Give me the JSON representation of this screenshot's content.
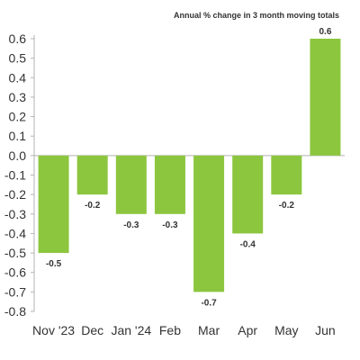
{
  "chart_data": {
    "type": "bar",
    "title": "",
    "subtitle": "Annual % change in 3 month moving totals",
    "xlabel": "",
    "ylabel": "",
    "categories": [
      "Nov '23",
      "Dec",
      "Jan '24",
      "Feb",
      "Mar",
      "Apr",
      "May",
      "Jun"
    ],
    "values": [
      -0.5,
      -0.2,
      -0.3,
      -0.3,
      -0.7,
      -0.4,
      -0.2,
      0.6
    ],
    "data_labels": [
      "-0.5",
      "-0.2",
      "-0.3",
      "-0.3",
      "-0.7",
      "-0.4",
      "-0.2",
      "0.6"
    ],
    "yticks": [
      0.6,
      0.5,
      0.4,
      0.3,
      0.2,
      0.1,
      0.0,
      -0.1,
      -0.2,
      -0.3,
      -0.4,
      -0.5,
      -0.6,
      -0.7,
      -0.8
    ],
    "ytick_labels": [
      "0.6",
      "0.5",
      "0.4",
      "0.3",
      "0.2",
      "0.1",
      "0.0",
      "-0.1",
      "-0.2",
      "-0.3",
      "-0.4",
      "-0.5",
      "-0.6",
      "-0.7",
      "-0.8"
    ],
    "ylim": [
      -0.8,
      0.6
    ],
    "grid": false,
    "legend": "none",
    "colors": {
      "bar": "#8cc63f",
      "axis": "#b3b3b3",
      "text": "#333333"
    }
  }
}
